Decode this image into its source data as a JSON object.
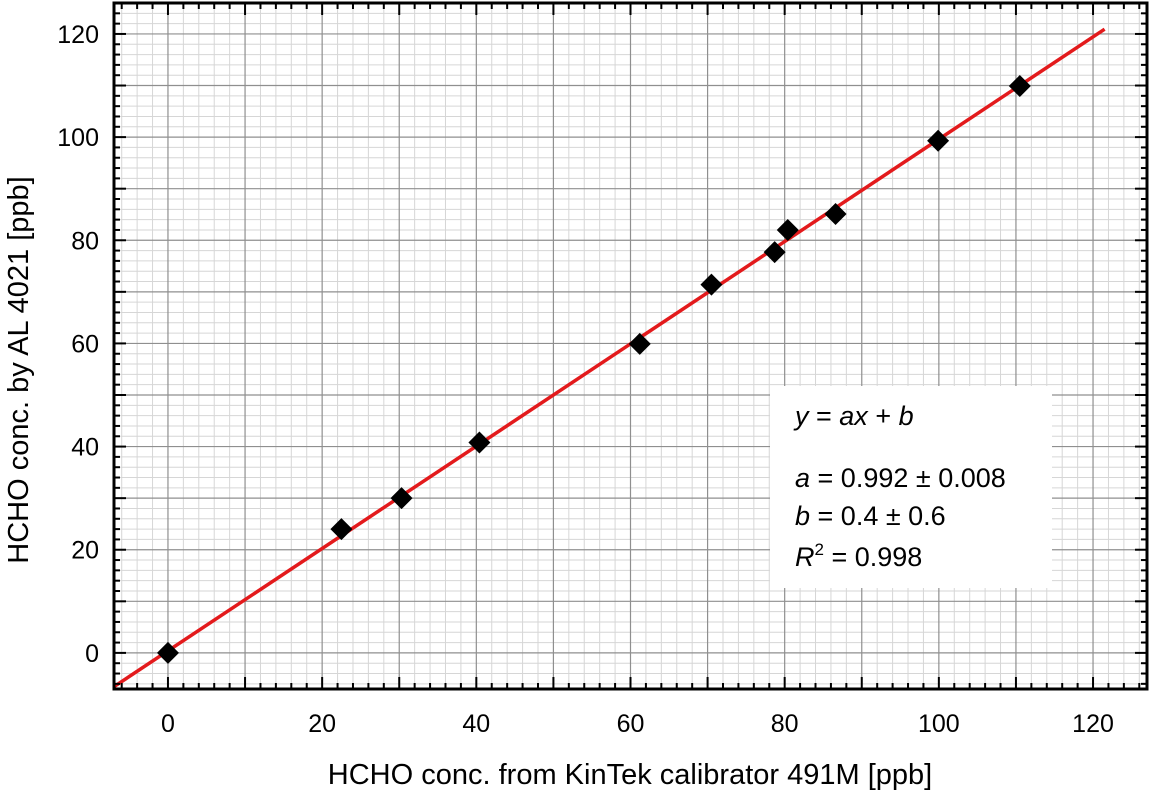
{
  "chart_data": {
    "type": "scatter",
    "xlabel": "HCHO conc. from KinTek calibrator 491M [ppb]",
    "ylabel": "HCHO conc. by AL 4021 [ppb]",
    "xlim": [
      -7,
      127
    ],
    "ylim": [
      -7,
      126
    ],
    "x_ticks": [
      "0",
      "20",
      "40",
      "60",
      "80",
      "100",
      "120"
    ],
    "y_ticks": [
      "0",
      "20",
      "40",
      "60",
      "80",
      "100",
      "120"
    ],
    "grid": true,
    "marker": "diamond",
    "marker_color": "#000000",
    "fit_color": "#e31a1c",
    "series": [
      {
        "points": [
          {
            "x": 0,
            "y": 0
          },
          {
            "x": 22.5,
            "y": 24
          },
          {
            "x": 30.3,
            "y": 30
          },
          {
            "x": 40.4,
            "y": 40.8
          },
          {
            "x": 61.2,
            "y": 59.9
          },
          {
            "x": 70.5,
            "y": 71.4
          },
          {
            "x": 78.7,
            "y": 77.7
          },
          {
            "x": 80.4,
            "y": 82
          },
          {
            "x": 86.6,
            "y": 85.1
          },
          {
            "x": 99.9,
            "y": 99.3
          },
          {
            "x": 110.5,
            "y": 109.9
          }
        ]
      }
    ],
    "fit": {
      "slope": 0.992,
      "intercept": 0.4,
      "x_range": [
        -7,
        121.5
      ]
    },
    "annotation": {
      "equation": {
        "y": "y",
        "eq": " = ",
        "ax": "ax",
        "plus": " + ",
        "b": "b"
      },
      "a_line": {
        "var": "a",
        "text": " = 0.992 ± 0.008"
      },
      "b_line": {
        "var": "b",
        "text": " = 0.4 ± 0.6"
      },
      "r2_line": {
        "var": "R",
        "sup": "2",
        "text": " = 0.998"
      },
      "placement": "lower-right"
    }
  }
}
